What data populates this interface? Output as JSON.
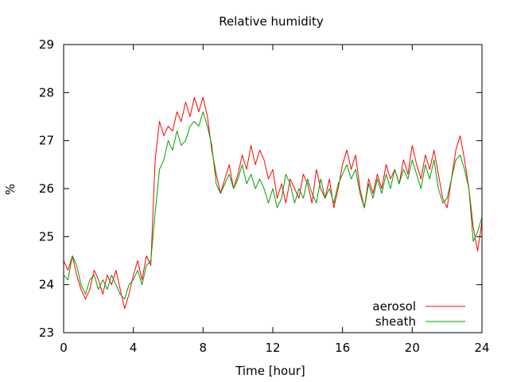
{
  "chart_data": {
    "type": "line",
    "title": "Relative humidity",
    "xlabel": "Time [hour]",
    "ylabel": "%",
    "xlim": [
      0,
      24
    ],
    "ylim": [
      23,
      29
    ],
    "xticks": [
      0,
      4,
      8,
      12,
      16,
      20,
      24
    ],
    "yticks": [
      23,
      24,
      25,
      26,
      27,
      28,
      29
    ],
    "grid": false,
    "legend_position": "bottom-right",
    "series": [
      {
        "name": "aerosol",
        "color": "#ff0000",
        "x": [
          0.0,
          0.25,
          0.5,
          0.75,
          1.0,
          1.25,
          1.5,
          1.75,
          2.0,
          2.25,
          2.5,
          2.75,
          3.0,
          3.25,
          3.5,
          3.75,
          4.0,
          4.25,
          4.5,
          4.75,
          5.0,
          5.25,
          5.5,
          5.75,
          6.0,
          6.25,
          6.5,
          6.75,
          7.0,
          7.25,
          7.5,
          7.75,
          8.0,
          8.25,
          8.5,
          8.75,
          9.0,
          9.25,
          9.5,
          9.75,
          10.0,
          10.25,
          10.5,
          10.75,
          11.0,
          11.25,
          11.5,
          11.75,
          12.0,
          12.25,
          12.5,
          12.75,
          13.0,
          13.25,
          13.5,
          13.75,
          14.0,
          14.25,
          14.5,
          14.75,
          15.0,
          15.25,
          15.5,
          15.75,
          16.0,
          16.25,
          16.5,
          16.75,
          17.0,
          17.25,
          17.5,
          17.75,
          18.0,
          18.25,
          18.5,
          18.75,
          19.0,
          19.25,
          19.5,
          19.75,
          20.0,
          20.25,
          20.5,
          20.75,
          21.0,
          21.25,
          21.5,
          21.75,
          22.0,
          22.25,
          22.5,
          22.75,
          23.0,
          23.25,
          23.5,
          23.75,
          24.0
        ],
        "y": [
          24.5,
          24.3,
          24.6,
          24.2,
          23.9,
          23.7,
          23.9,
          24.3,
          24.1,
          23.8,
          24.2,
          24.0,
          24.3,
          23.9,
          23.5,
          23.8,
          24.2,
          24.5,
          24.1,
          24.6,
          24.4,
          26.6,
          27.4,
          27.1,
          27.3,
          27.2,
          27.6,
          27.4,
          27.8,
          27.5,
          27.9,
          27.6,
          27.9,
          27.5,
          26.8,
          26.3,
          25.9,
          26.2,
          26.5,
          26.0,
          26.3,
          26.7,
          26.4,
          26.9,
          26.5,
          26.8,
          26.6,
          26.2,
          26.4,
          25.8,
          26.1,
          25.7,
          26.2,
          26.0,
          25.8,
          26.3,
          26.1,
          25.7,
          26.4,
          26.0,
          25.8,
          26.2,
          25.6,
          26.0,
          26.5,
          26.8,
          26.4,
          26.7,
          26.0,
          25.6,
          26.2,
          25.9,
          26.3,
          26.0,
          26.5,
          26.2,
          26.4,
          26.1,
          26.6,
          26.3,
          26.9,
          26.5,
          26.2,
          26.7,
          26.4,
          26.8,
          26.3,
          25.8,
          25.6,
          26.2,
          26.8,
          27.1,
          26.6,
          26.0,
          25.2,
          24.7,
          25.3
        ],
        "line_width": 1
      },
      {
        "name": "sheath",
        "color": "#00a000",
        "x": [
          0.0,
          0.25,
          0.5,
          0.75,
          1.0,
          1.25,
          1.5,
          1.75,
          2.0,
          2.25,
          2.5,
          2.75,
          3.0,
          3.25,
          3.5,
          3.75,
          4.0,
          4.25,
          4.5,
          4.75,
          5.0,
          5.25,
          5.5,
          5.75,
          6.0,
          6.25,
          6.5,
          6.75,
          7.0,
          7.25,
          7.5,
          7.75,
          8.0,
          8.25,
          8.5,
          8.75,
          9.0,
          9.25,
          9.5,
          9.75,
          10.0,
          10.25,
          10.5,
          10.75,
          11.0,
          11.25,
          11.5,
          11.75,
          12.0,
          12.25,
          12.5,
          12.75,
          13.0,
          13.25,
          13.5,
          13.75,
          14.0,
          14.25,
          14.5,
          14.75,
          15.0,
          15.25,
          15.5,
          15.75,
          16.0,
          16.25,
          16.5,
          16.75,
          17.0,
          17.25,
          17.5,
          17.75,
          18.0,
          18.25,
          18.5,
          18.75,
          19.0,
          19.25,
          19.5,
          19.75,
          20.0,
          20.25,
          20.5,
          20.75,
          21.0,
          21.25,
          21.5,
          21.75,
          22.0,
          22.25,
          22.5,
          22.75,
          23.0,
          23.25,
          23.5,
          23.75,
          24.0
        ],
        "y": [
          24.2,
          24.1,
          24.6,
          24.4,
          24.0,
          23.8,
          24.1,
          24.2,
          23.9,
          24.1,
          23.9,
          24.2,
          24.0,
          23.8,
          23.7,
          24.0,
          24.1,
          24.3,
          24.0,
          24.4,
          24.5,
          25.5,
          26.4,
          26.6,
          27.0,
          26.8,
          27.2,
          26.9,
          27.0,
          27.3,
          27.4,
          27.3,
          27.6,
          27.3,
          26.9,
          26.1,
          25.9,
          26.1,
          26.3,
          26.0,
          26.2,
          26.5,
          26.1,
          26.3,
          26.0,
          26.2,
          26.0,
          25.7,
          26.0,
          25.6,
          25.8,
          26.3,
          26.1,
          25.7,
          26.0,
          25.8,
          26.2,
          25.9,
          25.7,
          26.2,
          25.8,
          26.0,
          25.7,
          26.1,
          26.3,
          26.5,
          26.2,
          26.4,
          25.9,
          25.6,
          26.1,
          25.8,
          26.2,
          25.9,
          26.3,
          26.0,
          26.4,
          26.1,
          26.4,
          26.2,
          26.6,
          26.3,
          26.0,
          26.5,
          26.2,
          26.6,
          26.0,
          25.7,
          25.8,
          26.2,
          26.6,
          26.7,
          26.4,
          26.0,
          24.9,
          25.1,
          25.4
        ],
        "line_width": 1
      }
    ]
  }
}
